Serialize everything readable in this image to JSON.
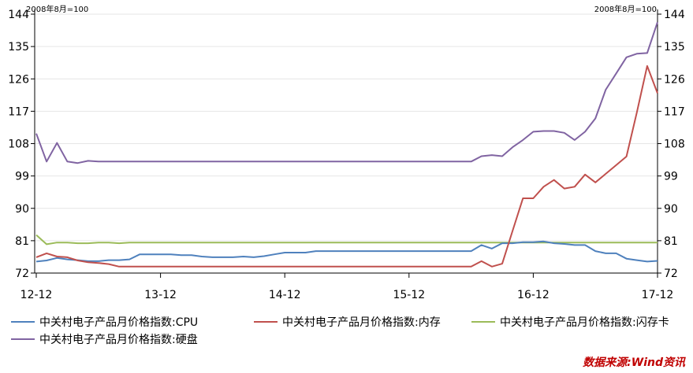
{
  "chart_data": {
    "type": "line",
    "unit_label_left": "2008年8月=100",
    "unit_label_right": "2008年8月=100",
    "yticks": [
      72,
      81,
      90,
      99,
      108,
      117,
      126,
      135,
      144
    ],
    "ylim": [
      72,
      144
    ],
    "x_ticks": [
      "12-12",
      "13-12",
      "14-12",
      "15-12",
      "16-12",
      "17-12"
    ],
    "x_tick_positions": [
      0,
      12,
      24,
      36,
      48,
      60
    ],
    "grid": "horizontal",
    "legend_position": "bottom",
    "series": [
      {
        "name": "中关村电子产品月价格指数:CPU",
        "color": "#4f81bd",
        "values": [
          75.2,
          75.5,
          76.2,
          75.8,
          75.6,
          75.3,
          75.3,
          75.6,
          75.6,
          75.8,
          77.2,
          77.2,
          77.2,
          77.2,
          77.0,
          77.0,
          76.6,
          76.4,
          76.4,
          76.4,
          76.6,
          76.4,
          76.7,
          77.2,
          77.7,
          77.7,
          77.7,
          78.1,
          78.1,
          78.1,
          78.1,
          78.1,
          78.1,
          78.1,
          78.1,
          78.1,
          78.1,
          78.1,
          78.1,
          78.1,
          78.1,
          78.1,
          78.1,
          79.8,
          78.8,
          80.3,
          80.3,
          80.6,
          80.6,
          80.8,
          80.3,
          80.1,
          79.8,
          79.8,
          78.1,
          77.5,
          77.5,
          76.0,
          75.6,
          75.2,
          75.4
        ]
      },
      {
        "name": "中关村电子产品月价格指数:内存",
        "color": "#c0504d",
        "values": [
          76.4,
          77.5,
          76.6,
          76.4,
          75.5,
          75.0,
          74.8,
          74.5,
          73.8,
          73.8,
          73.8,
          73.8,
          73.8,
          73.8,
          73.8,
          73.8,
          73.8,
          73.8,
          73.8,
          73.8,
          73.8,
          73.8,
          73.8,
          73.8,
          73.8,
          73.8,
          73.8,
          73.8,
          73.8,
          73.8,
          73.8,
          73.8,
          73.8,
          73.8,
          73.8,
          73.8,
          73.8,
          73.8,
          73.8,
          73.8,
          73.8,
          73.8,
          73.8,
          75.3,
          73.8,
          74.6,
          83.7,
          92.8,
          92.8,
          96.0,
          97.9,
          95.5,
          96.0,
          99.4,
          97.2,
          99.6,
          102.0,
          104.4,
          116.6,
          129.6,
          122.0
        ]
      },
      {
        "name": "中关村电子产品月价格指数:闪存卡",
        "color": "#9bbb59",
        "values": [
          82.6,
          80.0,
          80.5,
          80.5,
          80.3,
          80.3,
          80.5,
          80.5,
          80.3,
          80.5,
          80.5,
          80.5,
          80.5,
          80.5,
          80.5,
          80.5,
          80.5,
          80.5,
          80.5,
          80.5,
          80.5,
          80.5,
          80.5,
          80.5,
          80.5,
          80.5,
          80.5,
          80.5,
          80.5,
          80.5,
          80.5,
          80.5,
          80.5,
          80.5,
          80.5,
          80.5,
          80.5,
          80.5,
          80.5,
          80.5,
          80.5,
          80.5,
          80.5,
          80.5,
          80.5,
          80.5,
          80.5,
          80.5,
          80.5,
          80.5,
          80.5,
          80.5,
          80.5,
          80.5,
          80.5,
          80.5,
          80.5,
          80.5,
          80.5,
          80.5,
          80.5
        ]
      },
      {
        "name": "中关村电子产品月价格指数:硬盘",
        "color": "#8064a2",
        "values": [
          110.8,
          103.0,
          108.2,
          103.0,
          102.6,
          103.2,
          103.0,
          103.0,
          103.0,
          103.0,
          103.0,
          103.0,
          103.0,
          103.0,
          103.0,
          103.0,
          103.0,
          103.0,
          103.0,
          103.0,
          103.0,
          103.0,
          103.0,
          103.0,
          103.0,
          103.0,
          103.0,
          103.0,
          103.0,
          103.0,
          103.0,
          103.0,
          103.0,
          103.0,
          103.0,
          103.0,
          103.0,
          103.0,
          103.0,
          103.0,
          103.0,
          103.0,
          103.0,
          104.5,
          104.8,
          104.5,
          107.0,
          109.0,
          111.3,
          111.5,
          111.5,
          111.0,
          109.0,
          111.3,
          115.0,
          123.0,
          127.5,
          132.0,
          133.0,
          133.2,
          141.8
        ]
      }
    ]
  },
  "source_text": "数据来源:Wind资讯"
}
